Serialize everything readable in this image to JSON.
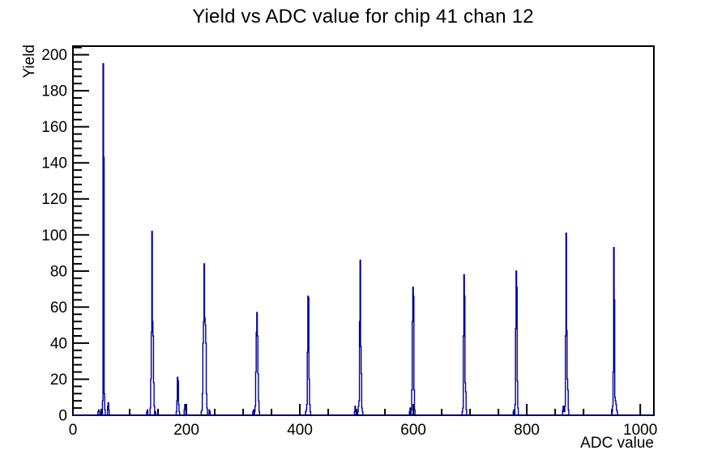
{
  "chart_data": {
    "type": "histogram",
    "title": "Yield vs ADC value for chip 41 chan 12",
    "xlabel": "ADC value",
    "ylabel": "Yield",
    "xlim": [
      0,
      1024
    ],
    "ylim": [
      0,
      204.75
    ],
    "x_major_ticks": [
      0,
      200,
      400,
      600,
      800,
      1000
    ],
    "x_minor_step": 50,
    "y_major_ticks": [
      0,
      20,
      40,
      60,
      80,
      100,
      120,
      140,
      160,
      180,
      200
    ],
    "y_minor_step": 4,
    "grid": false,
    "legend": null,
    "line_color": "#000099",
    "axis_color": "#000000",
    "background_color": "#ffffff",
    "peaks": [
      {
        "adc": 53,
        "yield": 195
      },
      {
        "adc": 139,
        "yield": 102
      },
      {
        "adc": 184,
        "yield": 21
      },
      {
        "adc": 231,
        "yield": 84
      },
      {
        "adc": 324,
        "yield": 57
      },
      {
        "adc": 414,
        "yield": 66
      },
      {
        "adc": 506,
        "yield": 86
      },
      {
        "adc": 599,
        "yield": 71
      },
      {
        "adc": 689,
        "yield": 78
      },
      {
        "adc": 781,
        "yield": 80
      },
      {
        "adc": 869,
        "yield": 101
      },
      {
        "adc": 953,
        "yield": 93
      }
    ],
    "clusters": [
      {
        "start": 44,
        "values": [
          2,
          3,
          2
        ]
      },
      {
        "start": 52,
        "values": [
          8,
          195,
          143,
          12,
          3
        ]
      },
      {
        "start": 61,
        "values": [
          5,
          7,
          3
        ]
      },
      {
        "start": 130,
        "values": [
          2,
          3
        ]
      },
      {
        "start": 136,
        "values": [
          4,
          20,
          46,
          102,
          52,
          44,
          18,
          5
        ]
      },
      {
        "start": 145,
        "values": [
          2
        ]
      },
      {
        "start": 182,
        "values": [
          2,
          8,
          21,
          19,
          6,
          2
        ]
      },
      {
        "start": 196,
        "values": [
          3,
          6,
          3
        ]
      },
      {
        "start": 226,
        "values": [
          2,
          3,
          12,
          40,
          52,
          84,
          54,
          50,
          40,
          12,
          4
        ]
      },
      {
        "start": 240,
        "values": [
          3,
          2
        ]
      },
      {
        "start": 317,
        "values": [
          2,
          3
        ]
      },
      {
        "start": 320,
        "values": [
          2,
          5,
          24,
          46,
          57,
          44,
          23,
          8,
          2
        ]
      },
      {
        "start": 410,
        "values": [
          2,
          3,
          6,
          35,
          66,
          65,
          20,
          6,
          2
        ]
      },
      {
        "start": 496,
        "values": [
          2,
          5,
          2
        ]
      },
      {
        "start": 502,
        "values": [
          2,
          5,
          8,
          52,
          86,
          38,
          23,
          4,
          2
        ]
      },
      {
        "start": 593,
        "values": [
          2,
          4
        ]
      },
      {
        "start": 596,
        "values": [
          3,
          14,
          52,
          71,
          66,
          14,
          3
        ]
      },
      {
        "start": 686,
        "values": [
          2,
          4,
          44,
          78,
          66,
          18,
          13,
          3
        ]
      },
      {
        "start": 776,
        "values": [
          2,
          3
        ]
      },
      {
        "start": 779,
        "values": [
          6,
          48,
          80,
          71,
          19,
          4
        ]
      },
      {
        "start": 863,
        "values": [
          3,
          5,
          2,
          2,
          5,
          44,
          101,
          47,
          20,
          14,
          3
        ]
      },
      {
        "start": 950,
        "values": [
          2,
          5,
          24,
          93,
          64,
          10,
          8,
          6,
          3,
          2
        ]
      }
    ]
  }
}
